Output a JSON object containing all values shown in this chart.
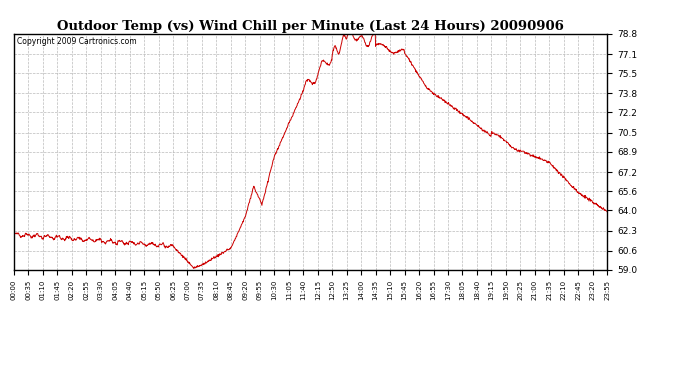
{
  "title": "Outdoor Temp (vs) Wind Chill per Minute (Last 24 Hours) 20090906",
  "copyright": "Copyright 2009 Cartronics.com",
  "line_color": "#cc0000",
  "background_color": "#ffffff",
  "grid_color": "#aaaaaa",
  "ylim": [
    59.0,
    78.8
  ],
  "yticks": [
    59.0,
    60.6,
    62.3,
    64.0,
    65.6,
    67.2,
    68.9,
    70.5,
    72.2,
    73.8,
    75.5,
    77.1,
    78.8
  ],
  "xtick_labels": [
    "00:00",
    "00:35",
    "01:10",
    "01:45",
    "02:20",
    "02:55",
    "03:30",
    "04:05",
    "04:40",
    "05:15",
    "05:50",
    "06:25",
    "07:00",
    "07:35",
    "08:10",
    "08:45",
    "09:20",
    "09:55",
    "10:30",
    "11:05",
    "11:40",
    "12:15",
    "12:50",
    "13:25",
    "14:00",
    "14:35",
    "15:10",
    "15:45",
    "16:20",
    "16:55",
    "17:30",
    "18:05",
    "18:40",
    "19:15",
    "19:50",
    "20:25",
    "21:00",
    "21:35",
    "22:10",
    "22:45",
    "23:20",
    "23:55"
  ]
}
